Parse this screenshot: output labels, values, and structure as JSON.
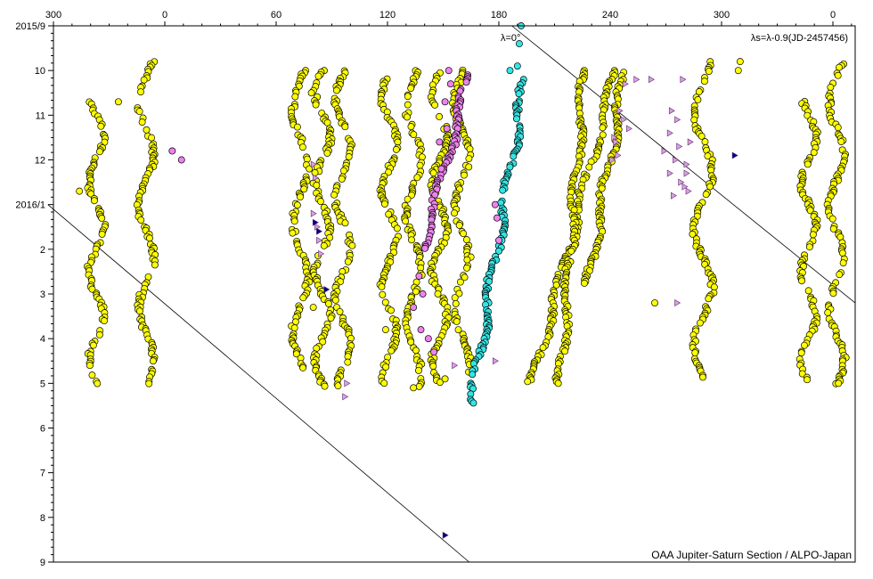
{
  "chart_data": {
    "type": "scatter",
    "title": "",
    "xlabel": "",
    "ylabel": "",
    "x_axis": {
      "description": "System II longitude, decreasing to the right, wrapping 360",
      "tick_labels": [
        "300",
        "0",
        "60",
        "120",
        "180",
        "240",
        "300",
        "0"
      ],
      "tick_longitudes": [
        300,
        0,
        60,
        120,
        180,
        240,
        300,
        0
      ],
      "tick_offsets": [
        -60,
        0,
        60,
        120,
        180,
        240,
        300,
        360
      ],
      "xlim_offset": [
        -60,
        372
      ]
    },
    "y_axis": {
      "description": "date, months since 2015 Sep 1",
      "tick_labels": [
        "2015/9",
        "10",
        "11",
        "12",
        "2016/1",
        "2",
        "3",
        "4",
        "5",
        "6",
        "7",
        "8",
        "9"
      ],
      "ylim_months": [
        0,
        12
      ]
    },
    "annotations": {
      "lambda_zero": "λ=0°",
      "formula": "λs=λ-0.9(JD-2457456)",
      "credit": "OAA Jupiter-Saturn Section / ALPO-Japan"
    },
    "reference_lines": [
      {
        "name": "λ=0° drift line (left)",
        "from": [
          -63,
          4.0
        ],
        "to": [
          164,
          12.0
        ]
      },
      {
        "name": "λ=0° drift line (right)",
        "from": [
          187,
          0.0
        ],
        "to": [
          372,
          6.2
        ]
      }
    ],
    "colors": {
      "yellow": "#ffff00",
      "cyan": "#33e5e5",
      "pink": "#ee82ee",
      "triangle_light": "#dda0dd",
      "triangle_dark": "#000080",
      "line": "#000000"
    },
    "series": [
      {
        "marker": "circle",
        "color": "yellow",
        "tracks": [
          {
            "offset": -37,
            "wave": 4,
            "period": 2.0,
            "y": [
              1.7,
              8.0
            ]
          },
          {
            "offset": -10,
            "wave": 4,
            "period": 2.3,
            "y": [
              0.8,
              8.0
            ]
          },
          {
            "offset": 73,
            "wave": 4,
            "period": 2.5,
            "y": [
              1.0,
              7.7
            ]
          },
          {
            "offset": 85,
            "wave": 4,
            "period": 2.0,
            "y": [
              1.0,
              8.1
            ]
          },
          {
            "offset": 96,
            "wave": 4,
            "period": 2.2,
            "y": [
              1.0,
              8.1
            ]
          },
          {
            "offset": 121,
            "wave": 4,
            "period": 2.1,
            "y": [
              1.2,
              8.0
            ]
          },
          {
            "offset": 134,
            "wave": 4,
            "period": 2.4,
            "y": [
              1.0,
              8.1
            ]
          },
          {
            "offset": 148,
            "wave": 4,
            "period": 2.0,
            "y": [
              1.0,
              8.0
            ]
          },
          {
            "offset": 160,
            "wave": 4,
            "period": 2.3,
            "y": [
              1.0,
              7.8
            ]
          },
          {
            "offset": 290,
            "wave": 5,
            "period": 2.6,
            "y": [
              0.8,
              7.9
            ]
          },
          {
            "offset": 347,
            "wave": 4,
            "period": 2.0,
            "y": [
              1.7,
              8.0
            ]
          },
          {
            "offset": 362,
            "wave": 4,
            "period": 2.3,
            "y": [
              0.8,
              8.0
            ]
          }
        ],
        "drifts": [
          {
            "x0": 243,
            "x1": 198,
            "y": [
              1.0,
              8.0
            ]
          },
          {
            "x0": 226,
            "x1": 213,
            "y": [
              1.0,
              8.0
            ]
          },
          {
            "x0": 248,
            "x1": 228,
            "y": [
              1.0,
              5.8
            ]
          }
        ],
        "points": [
          [
            -46,
            3.7
          ],
          [
            310,
            0.8
          ],
          [
            309,
            1.0
          ],
          [
            -25,
            1.7
          ],
          [
            79,
            1.5
          ],
          [
            80,
            6.3
          ],
          [
            119,
            6.8
          ],
          [
            264,
            6.2
          ],
          [
            363,
            8.0
          ],
          [
            134,
            8.1
          ],
          [
            151,
            7.9
          ],
          [
            212,
            8.0
          ]
        ]
      },
      {
        "marker": "circle",
        "color": "cyan",
        "tracks": [],
        "drifts": [
          {
            "x0": 194,
            "x1": 165,
            "y": [
              1.2,
              8.5
            ]
          }
        ],
        "points": [
          [
            192,
            0.0
          ],
          [
            191,
            0.4
          ],
          [
            190,
            0.9
          ],
          [
            186,
            1.0
          ]
        ]
      },
      {
        "marker": "circle",
        "color": "pink",
        "tracks": [],
        "drifts": [
          {
            "x0": 164,
            "x1": 139,
            "y": [
              1.1,
              5.0
            ]
          }
        ],
        "points": [
          [
            4,
            2.8
          ],
          [
            9,
            3.0
          ],
          [
            153,
            1.0
          ],
          [
            154,
            1.3
          ],
          [
            151,
            1.7
          ],
          [
            152,
            2.3
          ],
          [
            148,
            2.6
          ],
          [
            149,
            3.2
          ],
          [
            178,
            4.0
          ],
          [
            179,
            4.3
          ],
          [
            180,
            4.8
          ],
          [
            137,
            5.6
          ],
          [
            139,
            6.0
          ],
          [
            134,
            6.3
          ],
          [
            138,
            6.8
          ],
          [
            142,
            7.0
          ],
          [
            145,
            7.3
          ]
        ]
      },
      {
        "marker": "triangle",
        "color": "triangle_light",
        "points": [
          [
            254,
            1.2
          ],
          [
            279,
            1.2
          ],
          [
            248,
            1.3
          ],
          [
            245,
            1.9
          ],
          [
            247,
            2.1
          ],
          [
            250,
            2.3
          ],
          [
            273,
            1.9
          ],
          [
            276,
            2.1
          ],
          [
            272,
            2.4
          ],
          [
            277,
            2.7
          ],
          [
            269,
            2.8
          ],
          [
            275,
            3.0
          ],
          [
            281,
            3.1
          ],
          [
            272,
            3.3
          ],
          [
            278,
            3.5
          ],
          [
            280,
            3.6
          ],
          [
            274,
            3.8
          ],
          [
            283,
            2.6
          ],
          [
            282,
            3.7
          ],
          [
            242,
            2.5
          ],
          [
            243,
            2.6
          ],
          [
            244,
            2.9
          ],
          [
            80,
            3.1
          ],
          [
            81,
            3.4
          ],
          [
            80,
            4.2
          ],
          [
            82,
            4.5
          ],
          [
            83,
            4.8
          ],
          [
            84,
            5.1
          ],
          [
            98,
            8.0
          ],
          [
            97,
            8.3
          ],
          [
            156,
            7.6
          ],
          [
            178,
            7.5
          ],
          [
            262,
            1.2
          ],
          [
            241,
            3.0
          ],
          [
            276,
            6.2
          ],
          [
            281,
            3.3
          ]
        ]
      },
      {
        "marker": "triangle",
        "color": "triangle_dark",
        "points": [
          [
            81,
            4.4
          ],
          [
            83,
            4.6
          ],
          [
            87,
            5.9
          ],
          [
            307,
            2.9
          ],
          [
            151,
            11.4
          ]
        ]
      }
    ]
  }
}
